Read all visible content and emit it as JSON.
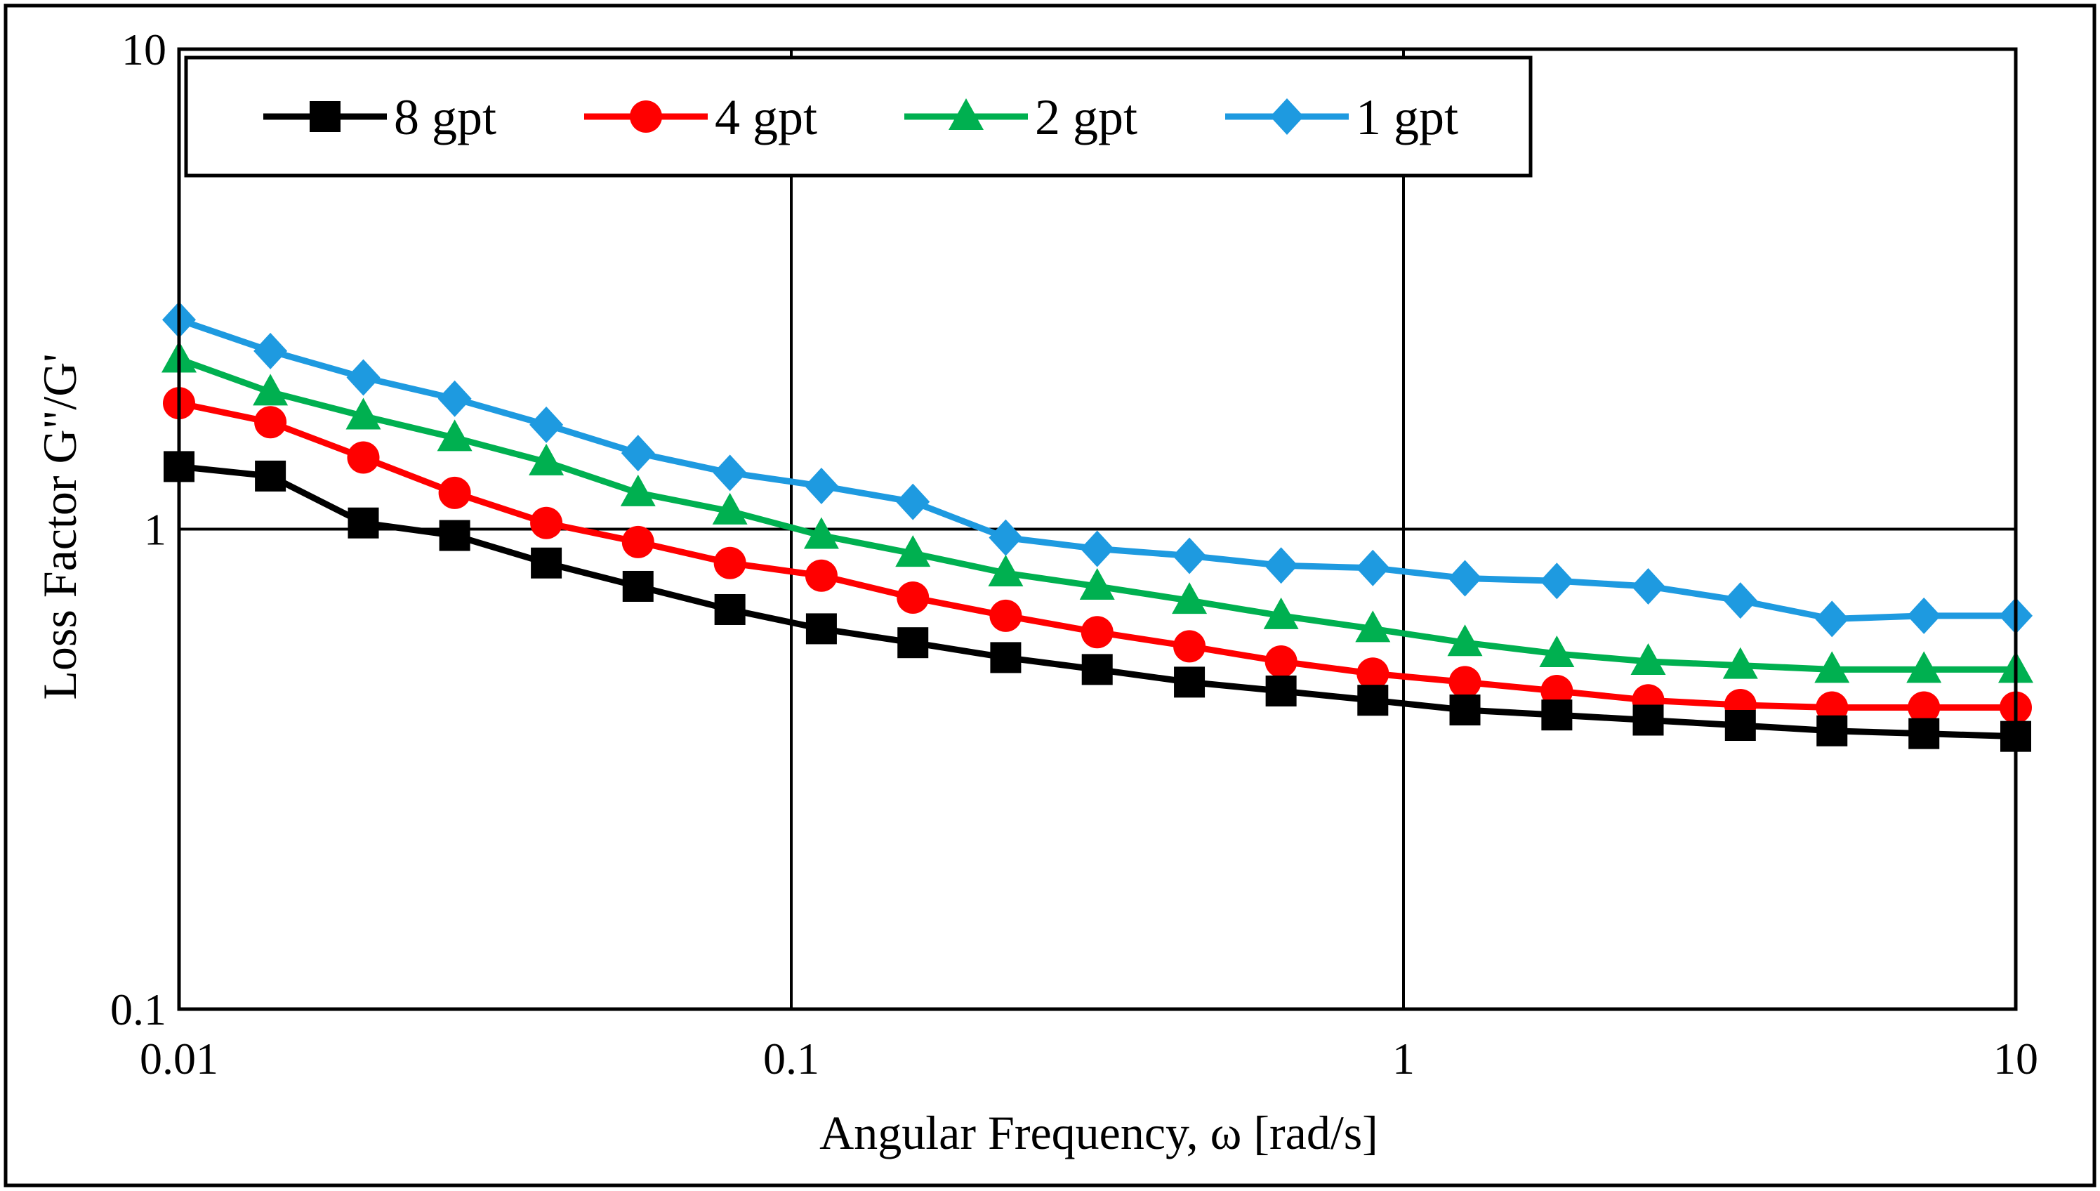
{
  "chart_data": {
    "type": "line",
    "title": "",
    "xlabel": "Angular Frequency, ω [rad/s]",
    "ylabel": "Loss Factor G\"/G'",
    "xscale": "log",
    "yscale": "log",
    "xlim": [
      0.01,
      10
    ],
    "ylim": [
      0.1,
      10
    ],
    "xticks": [
      0.01,
      0.1,
      1,
      10
    ],
    "xtick_labels": [
      "0.01",
      "0.1",
      "1",
      "10"
    ],
    "yticks": [
      0.1,
      1,
      10
    ],
    "ytick_labels": [
      "0.1",
      "1",
      "10"
    ],
    "grid": true,
    "legend": {
      "position": "top-left",
      "columns": 4
    },
    "x": [
      0.01,
      0.0141,
      0.02,
      0.0282,
      0.0398,
      0.0562,
      0.0794,
      0.112,
      0.158,
      0.224,
      0.316,
      0.447,
      0.631,
      0.891,
      1.26,
      1.78,
      2.51,
      3.55,
      5.01,
      7.08,
      10
    ],
    "series": [
      {
        "name": "8 gpt",
        "color": "#000000",
        "marker": "square",
        "values": [
          1.35,
          1.29,
          1.03,
          0.97,
          0.85,
          0.76,
          0.68,
          0.62,
          0.58,
          0.54,
          0.51,
          0.48,
          0.46,
          0.44,
          0.42,
          0.41,
          0.4,
          0.39,
          0.38,
          0.375,
          0.37
        ]
      },
      {
        "name": "4 gpt",
        "color": "#ff0000",
        "marker": "circle",
        "values": [
          1.83,
          1.67,
          1.41,
          1.19,
          1.03,
          0.94,
          0.85,
          0.8,
          0.72,
          0.66,
          0.61,
          0.57,
          0.53,
          0.5,
          0.48,
          0.46,
          0.44,
          0.43,
          0.425,
          0.425,
          0.425
        ]
      },
      {
        "name": "2 gpt",
        "color": "#00b050",
        "marker": "triangle",
        "values": [
          2.26,
          1.93,
          1.72,
          1.55,
          1.38,
          1.19,
          1.09,
          0.97,
          0.89,
          0.81,
          0.76,
          0.71,
          0.66,
          0.62,
          0.58,
          0.55,
          0.53,
          0.52,
          0.51,
          0.51,
          0.51
        ]
      },
      {
        "name": "1 gpt",
        "color": "#1e9ae0",
        "marker": "diamond",
        "values": [
          2.73,
          2.35,
          2.07,
          1.87,
          1.65,
          1.44,
          1.31,
          1.23,
          1.14,
          0.96,
          0.91,
          0.88,
          0.84,
          0.83,
          0.79,
          0.78,
          0.76,
          0.71,
          0.65,
          0.66,
          0.66
        ]
      }
    ]
  }
}
